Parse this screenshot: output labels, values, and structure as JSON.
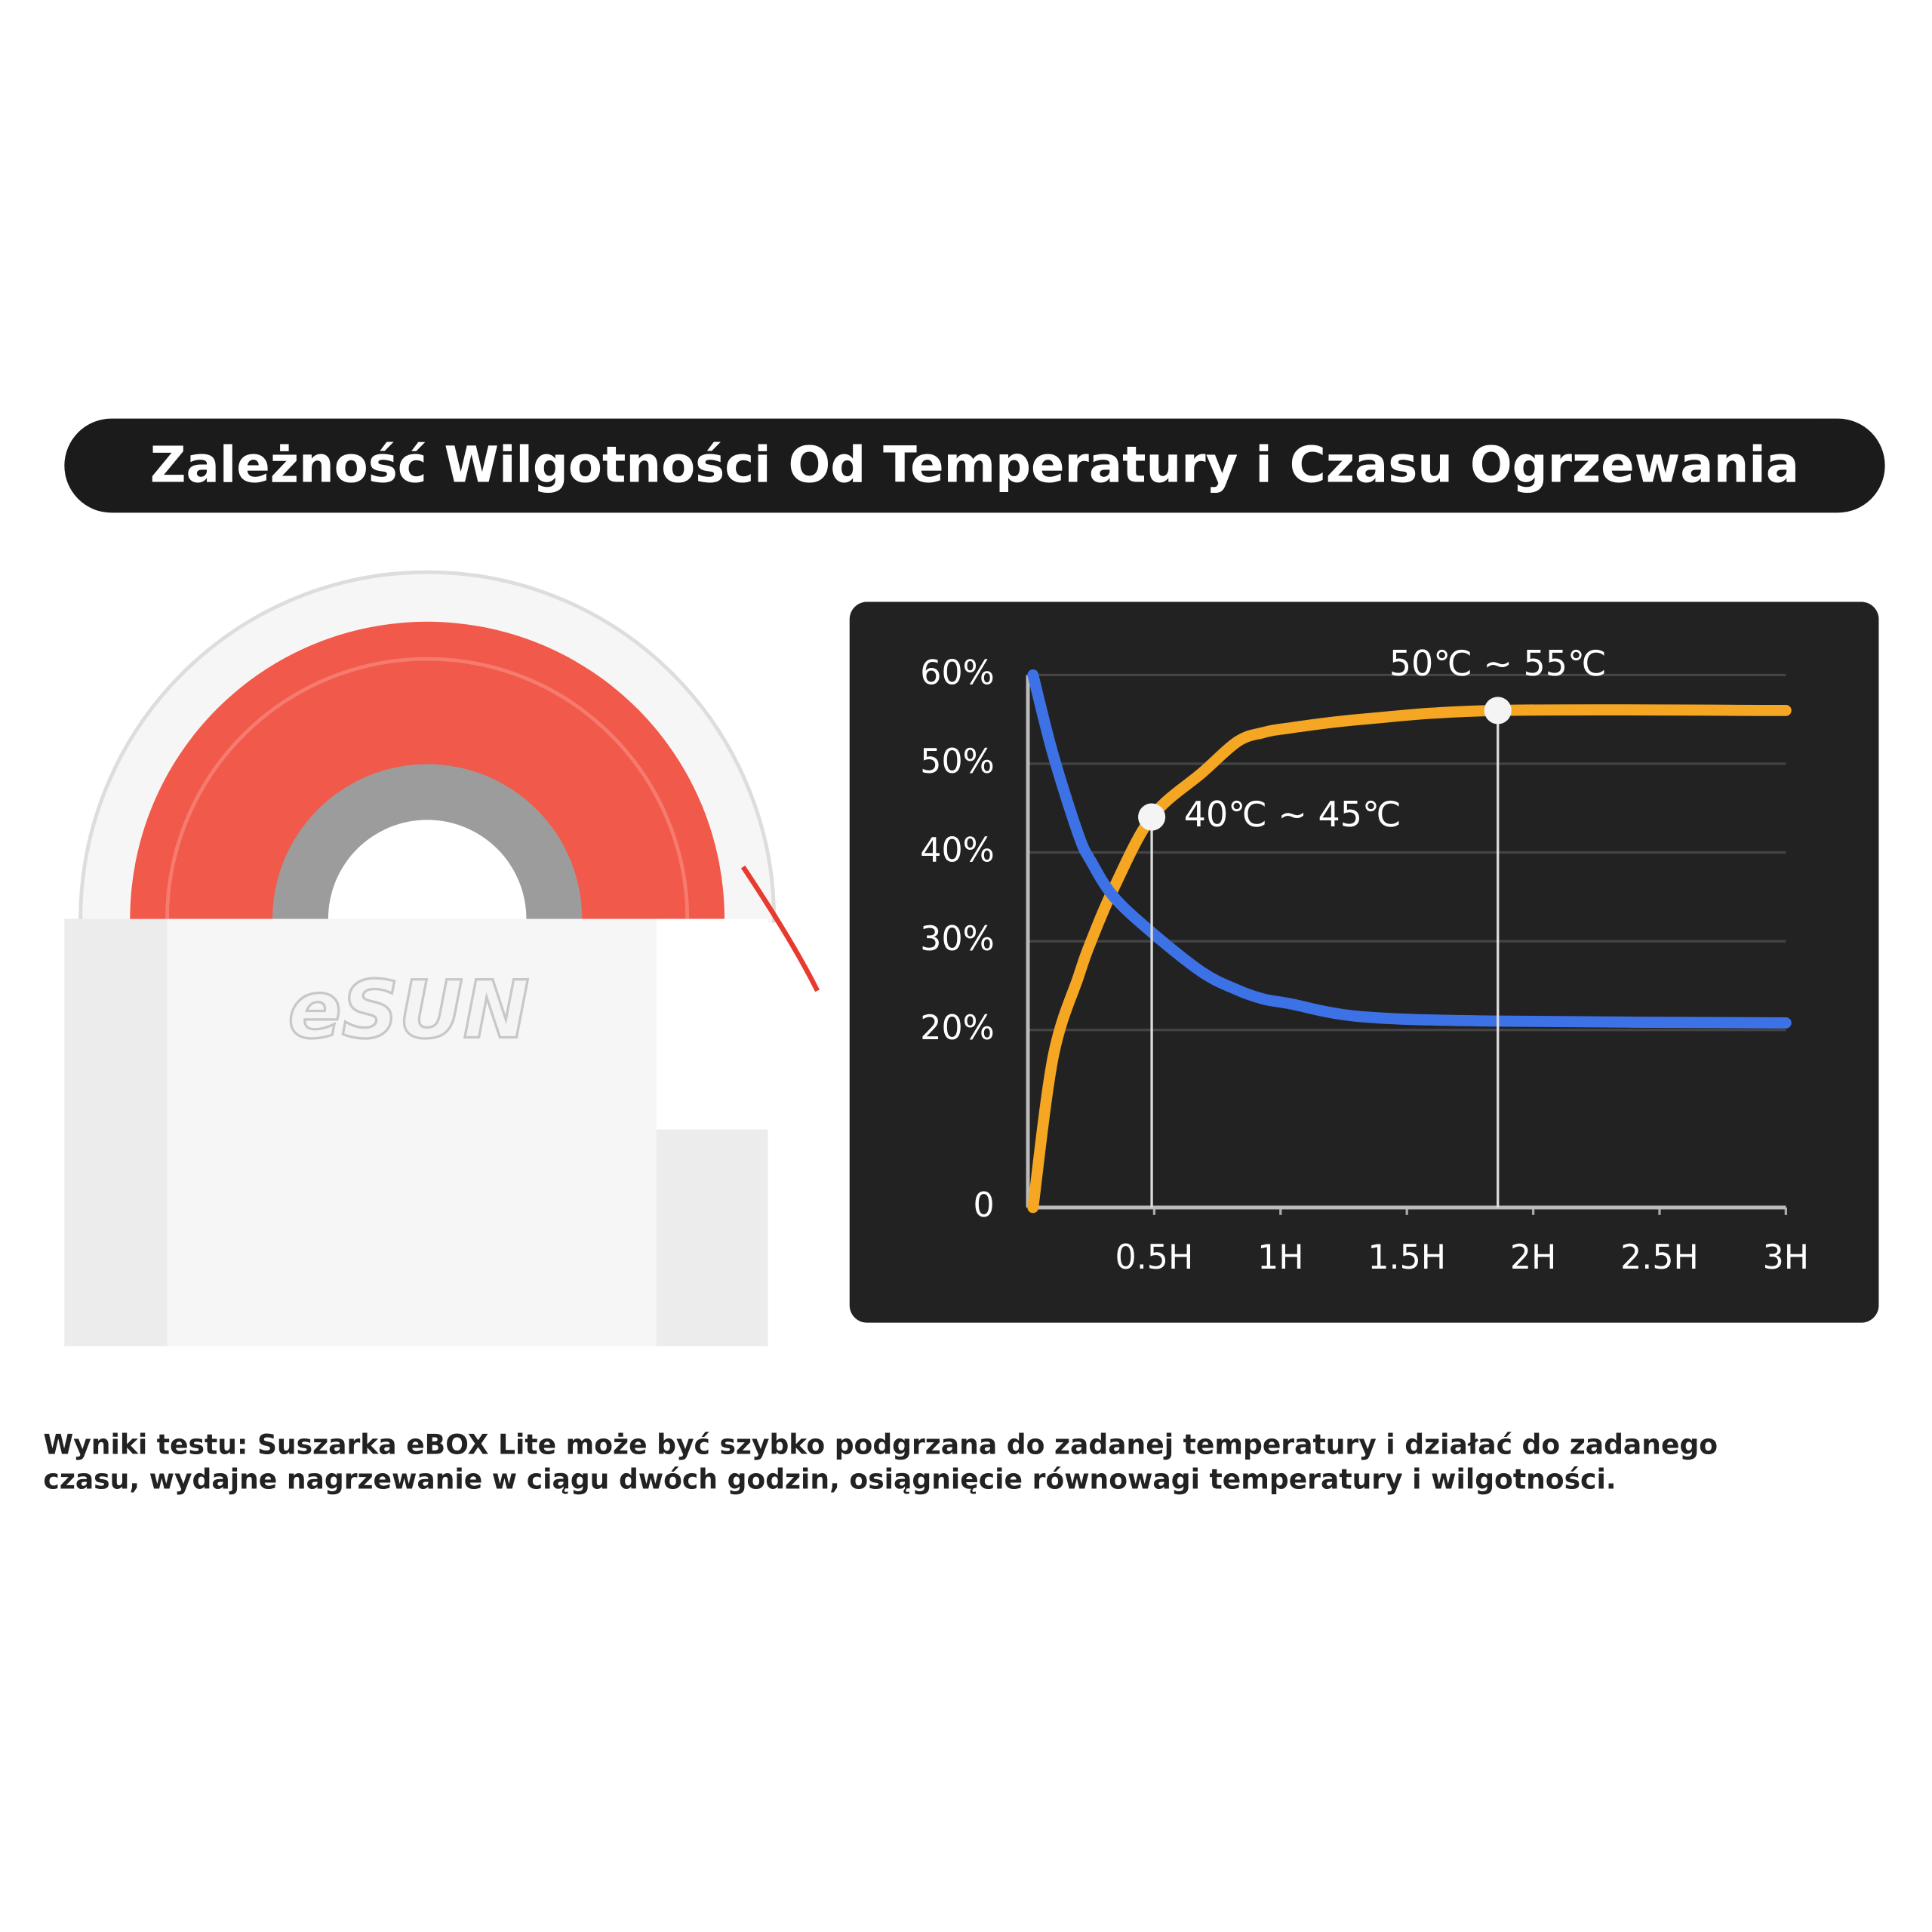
{
  "title": "Zależność Wilgotności Od Temperatury i Czasu Ogrzewania",
  "product": {
    "logo": "eSUN"
  },
  "chart_data": {
    "type": "line",
    "x": [
      0.02,
      0.1,
      0.2,
      0.25,
      0.34,
      0.49,
      0.69,
      0.83,
      0.93,
      1.03,
      1.32,
      1.86,
      3
    ],
    "series": [
      {
        "color": "#f5a623",
        "values": [
          0,
          17,
          26,
          30,
          36,
          44,
          49,
          52.5,
          53.5,
          54,
          55,
          56,
          56
        ]
      },
      {
        "color": "#3d72e6",
        "values": [
          60,
          51,
          42,
          39,
          35,
          31,
          26.5,
          24.5,
          23.5,
          23,
          21.5,
          21,
          20.8
        ]
      }
    ],
    "xlim": [
      0,
      3
    ],
    "ylim": [
      0,
      60
    ],
    "xticks": [
      {
        "value": 0.5,
        "label": "0.5H"
      },
      {
        "value": 1,
        "label": "1H"
      },
      {
        "value": 1.5,
        "label": "1.5H"
      },
      {
        "value": 2,
        "label": "2H"
      },
      {
        "value": 2.5,
        "label": "2.5H"
      },
      {
        "value": 3,
        "label": "3H"
      }
    ],
    "yticks": [
      0,
      {
        "value": 20,
        "label": "20%"
      },
      {
        "value": 30,
        "label": "30%"
      },
      {
        "value": 40,
        "label": "40%"
      },
      {
        "value": 50,
        "label": "50%"
      },
      {
        "value": 60,
        "label": "60%"
      }
    ],
    "grid": true,
    "annotations": [
      {
        "x": 0.49,
        "y": 44,
        "text": "40℃ ~ 45℃"
      },
      {
        "x": 1.86,
        "y": 56,
        "text": "50℃ ~ 55℃"
      }
    ]
  },
  "caption": [
    "Wyniki testu: Suszarka eBOX Lite może być szybko podgrzana do zadanej temperatury i działać do zadanego",
    "czasu, wydajne nagrzewanie w ciągu dwóch godzin, osiągnięcie równowagi temperatury i wilgotności."
  ]
}
